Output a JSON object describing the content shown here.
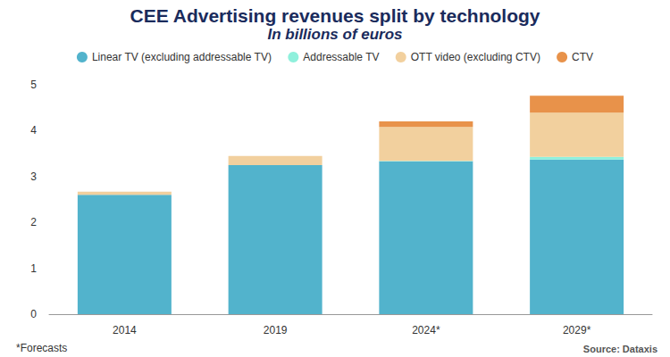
{
  "chart_data": {
    "type": "bar",
    "title": "CEE Advertising revenues split by technology",
    "subtitle": "In billions of euros",
    "footnote": "*Forecasts",
    "source": "Source: Dataxis",
    "categories": [
      "2014",
      "2019",
      "2024*",
      "2029*"
    ],
    "series": [
      {
        "name": "Linear TV (excluding addressable TV)",
        "color": "#52b3cc",
        "values": [
          2.6,
          3.25,
          3.33,
          3.37
        ]
      },
      {
        "name": "Addressable TV",
        "color": "#8ff0dc",
        "values": [
          0,
          0,
          0.01,
          0.06
        ]
      },
      {
        "name": "OTT video (excluding CTV)",
        "color": "#f2d09e",
        "values": [
          0.07,
          0.2,
          0.74,
          0.96
        ]
      },
      {
        "name": "CTV",
        "color": "#e8924a",
        "values": [
          0,
          0,
          0.12,
          0.37
        ]
      }
    ],
    "ylim": [
      0,
      5
    ],
    "yticks": [
      0,
      1,
      2,
      3,
      4,
      5
    ],
    "stacked": true,
    "grid": false,
    "legend": "top"
  }
}
